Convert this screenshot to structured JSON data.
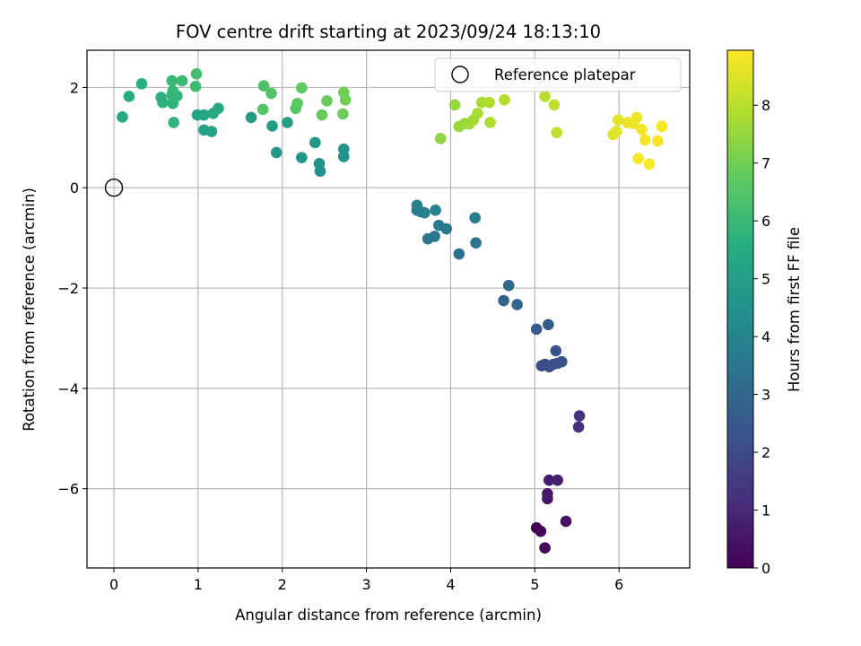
{
  "chart_data": {
    "type": "scatter",
    "title": "FOV centre drift starting at 2023/09/24 18:13:10",
    "xlabel": "Angular distance from reference (arcmin)",
    "ylabel": "Rotation from reference (arcmin)",
    "xlim": [
      -0.32,
      6.84
    ],
    "ylim": [
      -7.58,
      2.74
    ],
    "xticks": [
      0,
      1,
      2,
      3,
      4,
      5,
      6
    ],
    "yticks": [
      -6,
      -4,
      -2,
      0,
      2
    ],
    "grid": true,
    "legend": {
      "position": "top-right",
      "entries": [
        "Reference platepar"
      ]
    },
    "reference_point": {
      "x": 0,
      "y": 0
    },
    "colorbar": {
      "label": "Hours from first FF file",
      "range": [
        0,
        8.95
      ],
      "ticks": [
        0,
        1,
        2,
        3,
        4,
        5,
        6,
        7,
        8
      ],
      "colormap": "viridis"
    },
    "points": [
      {
        "x": 5.02,
        "y": -6.78,
        "c": 0.05
      },
      {
        "x": 5.07,
        "y": -6.85,
        "c": 0.1
      },
      {
        "x": 5.12,
        "y": -7.18,
        "c": 0.15
      },
      {
        "x": 5.37,
        "y": -6.65,
        "c": 0.4
      },
      {
        "x": 5.15,
        "y": -6.2,
        "c": 0.5
      },
      {
        "x": 5.15,
        "y": -6.1,
        "c": 0.6
      },
      {
        "x": 5.17,
        "y": -5.83,
        "c": 0.7
      },
      {
        "x": 5.27,
        "y": -5.83,
        "c": 0.8
      },
      {
        "x": 5.52,
        "y": -4.77,
        "c": 1.2
      },
      {
        "x": 5.53,
        "y": -4.55,
        "c": 1.3
      },
      {
        "x": 5.08,
        "y": -3.55,
        "c": 2.0
      },
      {
        "x": 5.12,
        "y": -3.52,
        "c": 2.05
      },
      {
        "x": 5.17,
        "y": -3.57,
        "c": 2.1
      },
      {
        "x": 5.22,
        "y": -3.52,
        "c": 2.15
      },
      {
        "x": 5.27,
        "y": -3.5,
        "c": 2.2
      },
      {
        "x": 5.32,
        "y": -3.47,
        "c": 2.25
      },
      {
        "x": 5.25,
        "y": -3.25,
        "c": 2.3
      },
      {
        "x": 5.02,
        "y": -2.82,
        "c": 2.5
      },
      {
        "x": 5.16,
        "y": -2.73,
        "c": 2.6
      },
      {
        "x": 4.63,
        "y": -2.25,
        "c": 2.8
      },
      {
        "x": 4.79,
        "y": -2.33,
        "c": 2.9
      },
      {
        "x": 4.69,
        "y": -1.95,
        "c": 3.0
      },
      {
        "x": 4.1,
        "y": -1.32,
        "c": 3.3
      },
      {
        "x": 4.3,
        "y": -1.1,
        "c": 3.4
      },
      {
        "x": 3.73,
        "y": -1.02,
        "c": 3.5
      },
      {
        "x": 3.81,
        "y": -0.97,
        "c": 3.55
      },
      {
        "x": 3.86,
        "y": -0.75,
        "c": 3.6
      },
      {
        "x": 3.95,
        "y": -0.82,
        "c": 3.65
      },
      {
        "x": 4.29,
        "y": -0.6,
        "c": 3.7
      },
      {
        "x": 3.6,
        "y": -0.45,
        "c": 3.75
      },
      {
        "x": 3.65,
        "y": -0.48,
        "c": 3.8
      },
      {
        "x": 3.6,
        "y": -0.35,
        "c": 3.85
      },
      {
        "x": 3.69,
        "y": -0.5,
        "c": 3.9
      },
      {
        "x": 3.82,
        "y": -0.45,
        "c": 3.95
      },
      {
        "x": 2.45,
        "y": 0.33,
        "c": 4.5
      },
      {
        "x": 2.44,
        "y": 0.48,
        "c": 4.55
      },
      {
        "x": 2.73,
        "y": 0.62,
        "c": 4.6
      },
      {
        "x": 2.73,
        "y": 0.77,
        "c": 4.65
      },
      {
        "x": 2.39,
        "y": 0.9,
        "c": 4.7
      },
      {
        "x": 2.23,
        "y": 0.6,
        "c": 4.75
      },
      {
        "x": 1.93,
        "y": 0.7,
        "c": 4.8
      },
      {
        "x": 1.63,
        "y": 1.4,
        "c": 4.9
      },
      {
        "x": 1.88,
        "y": 1.23,
        "c": 4.95
      },
      {
        "x": 2.06,
        "y": 1.3,
        "c": 5.0
      },
      {
        "x": 1.07,
        "y": 1.15,
        "c": 5.1
      },
      {
        "x": 1.16,
        "y": 1.12,
        "c": 5.15
      },
      {
        "x": 0.99,
        "y": 1.45,
        "c": 5.2
      },
      {
        "x": 1.07,
        "y": 1.45,
        "c": 5.25
      },
      {
        "x": 1.18,
        "y": 1.48,
        "c": 5.3
      },
      {
        "x": 1.24,
        "y": 1.58,
        "c": 5.35
      },
      {
        "x": 0.1,
        "y": 1.41,
        "c": 5.5
      },
      {
        "x": 0.18,
        "y": 1.82,
        "c": 5.55
      },
      {
        "x": 0.33,
        "y": 2.07,
        "c": 5.6
      },
      {
        "x": 0.56,
        "y": 1.8,
        "c": 5.65
      },
      {
        "x": 0.58,
        "y": 1.7,
        "c": 5.7
      },
      {
        "x": 0.7,
        "y": 1.68,
        "c": 5.75
      },
      {
        "x": 0.71,
        "y": 1.3,
        "c": 5.8
      },
      {
        "x": 0.69,
        "y": 1.85,
        "c": 5.85
      },
      {
        "x": 0.75,
        "y": 1.83,
        "c": 5.9
      },
      {
        "x": 0.7,
        "y": 1.93,
        "c": 5.95
      },
      {
        "x": 0.69,
        "y": 2.13,
        "c": 6.0
      },
      {
        "x": 0.81,
        "y": 2.13,
        "c": 6.05
      },
      {
        "x": 0.97,
        "y": 2.02,
        "c": 6.1
      },
      {
        "x": 0.98,
        "y": 2.27,
        "c": 6.15
      },
      {
        "x": 1.78,
        "y": 2.03,
        "c": 6.4
      },
      {
        "x": 1.87,
        "y": 1.88,
        "c": 6.45
      },
      {
        "x": 1.77,
        "y": 1.56,
        "c": 6.5
      },
      {
        "x": 2.16,
        "y": 1.58,
        "c": 6.6
      },
      {
        "x": 2.18,
        "y": 1.68,
        "c": 6.65
      },
      {
        "x": 2.23,
        "y": 1.99,
        "c": 6.7
      },
      {
        "x": 2.47,
        "y": 1.45,
        "c": 6.8
      },
      {
        "x": 2.53,
        "y": 1.73,
        "c": 6.85
      },
      {
        "x": 2.72,
        "y": 1.47,
        "c": 6.9
      },
      {
        "x": 2.73,
        "y": 1.9,
        "c": 6.95
      },
      {
        "x": 2.75,
        "y": 1.75,
        "c": 7.0
      },
      {
        "x": 3.88,
        "y": 0.98,
        "c": 7.4
      },
      {
        "x": 4.05,
        "y": 1.65,
        "c": 7.5
      },
      {
        "x": 4.1,
        "y": 1.22,
        "c": 7.55
      },
      {
        "x": 4.17,
        "y": 1.28,
        "c": 7.6
      },
      {
        "x": 4.22,
        "y": 1.27,
        "c": 7.65
      },
      {
        "x": 4.27,
        "y": 1.35,
        "c": 7.7
      },
      {
        "x": 4.32,
        "y": 1.48,
        "c": 7.75
      },
      {
        "x": 4.37,
        "y": 1.7,
        "c": 7.8
      },
      {
        "x": 4.46,
        "y": 1.7,
        "c": 7.85
      },
      {
        "x": 4.47,
        "y": 1.3,
        "c": 7.9
      },
      {
        "x": 4.64,
        "y": 1.75,
        "c": 7.95
      },
      {
        "x": 5.12,
        "y": 1.82,
        "c": 8.0
      },
      {
        "x": 5.23,
        "y": 1.65,
        "c": 8.05
      },
      {
        "x": 5.26,
        "y": 1.1,
        "c": 8.1
      },
      {
        "x": 5.93,
        "y": 1.06,
        "c": 8.5
      },
      {
        "x": 5.97,
        "y": 1.12,
        "c": 8.55
      },
      {
        "x": 5.99,
        "y": 1.35,
        "c": 8.6
      },
      {
        "x": 6.1,
        "y": 1.3,
        "c": 8.65
      },
      {
        "x": 6.17,
        "y": 1.28,
        "c": 8.7
      },
      {
        "x": 6.21,
        "y": 1.4,
        "c": 8.75
      },
      {
        "x": 6.27,
        "y": 1.16,
        "c": 8.8
      },
      {
        "x": 6.31,
        "y": 0.95,
        "c": 8.82
      },
      {
        "x": 6.23,
        "y": 0.58,
        "c": 8.84
      },
      {
        "x": 6.36,
        "y": 0.47,
        "c": 8.86
      },
      {
        "x": 6.46,
        "y": 0.93,
        "c": 8.88
      },
      {
        "x": 6.51,
        "y": 1.22,
        "c": 8.9
      }
    ]
  }
}
